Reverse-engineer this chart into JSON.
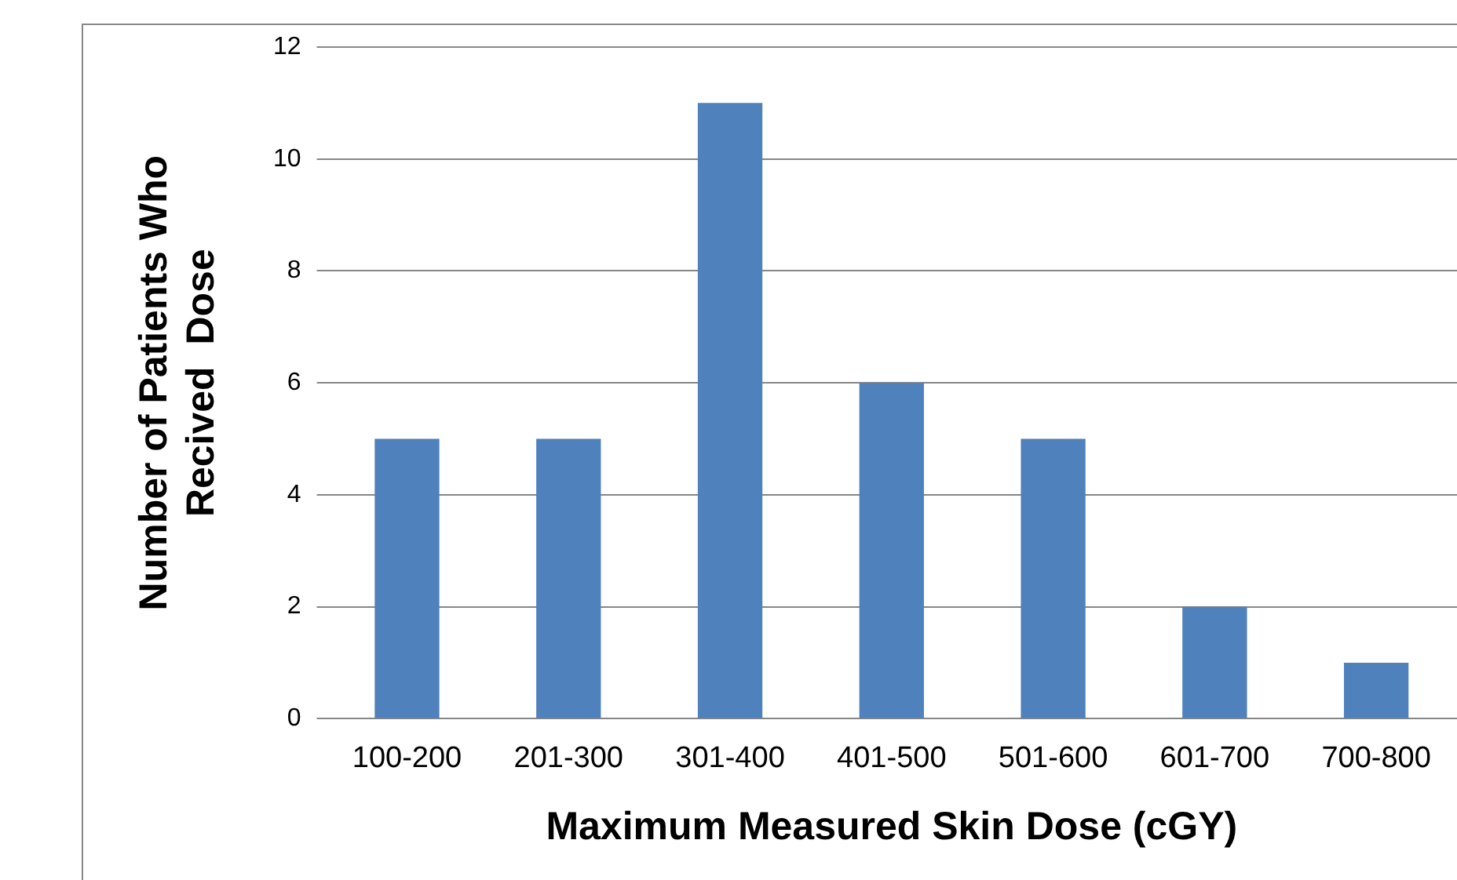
{
  "chart_data": {
    "type": "bar",
    "xlabel": "Maximum Measured Skin Dose (cGY)",
    "ylabel": "Number of Patients Who\nRecived  Dose",
    "categories": [
      "100-200",
      "201-300",
      "301-400",
      "401-500",
      "501-600",
      "601-700",
      "700-800"
    ],
    "values": [
      5,
      5,
      11,
      6,
      5,
      2,
      1
    ],
    "color": "#4f81bd",
    "ylim": [
      0,
      12
    ],
    "yticks": [
      0,
      2,
      4,
      6,
      8,
      10,
      12
    ],
    "grid": "y",
    "legend": false
  }
}
